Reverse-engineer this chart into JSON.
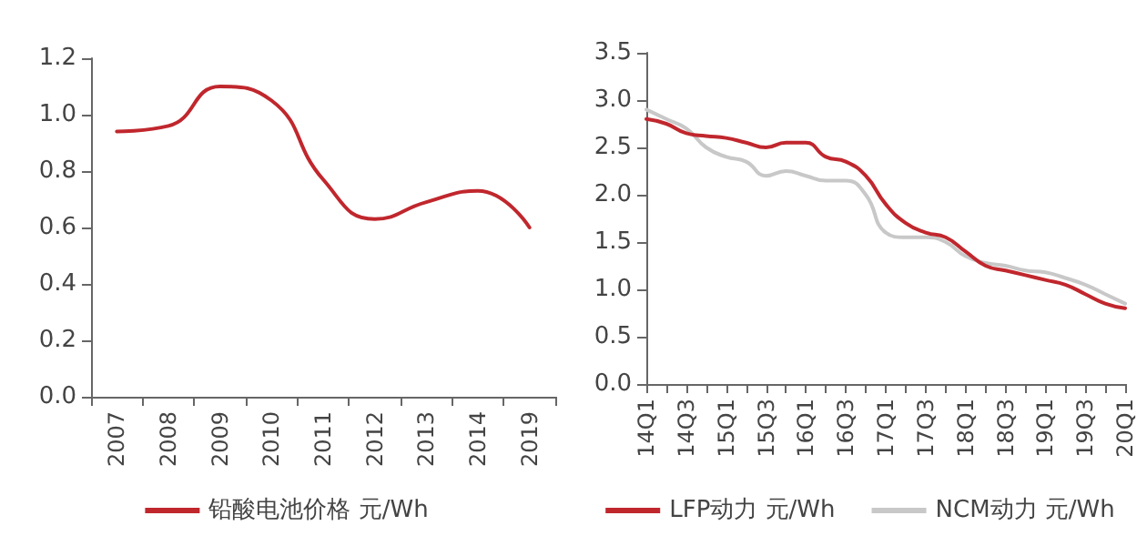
{
  "chart_data": [
    {
      "type": "line",
      "categories": [
        "2007",
        "2008",
        "2009",
        "2010",
        "2011",
        "2012",
        "2013",
        "2014",
        "2019"
      ],
      "series": [
        {
          "name": "铅酸电池价格 元/Wh",
          "color": "#c0272d",
          "values": [
            0.94,
            0.96,
            1.1,
            1.05,
            0.77,
            0.63,
            0.69,
            0.73,
            0.6
          ]
        }
      ],
      "ylim": [
        0,
        1.2
      ],
      "yticks": [
        {
          "value": 0,
          "label": "0.0"
        },
        {
          "value": 0.2,
          "label": "0.2"
        },
        {
          "value": 0.4,
          "label": "0.4"
        },
        {
          "value": 0.6,
          "label": "0.6"
        },
        {
          "value": 0.8,
          "label": "0.8"
        },
        {
          "value": 1,
          "label": "1.0"
        },
        {
          "value": 1.2,
          "label": "1.2"
        }
      ],
      "grid": false,
      "legend": "bottom",
      "marker": "none",
      "line_style": "solid"
    },
    {
      "type": "line",
      "categories": [
        "14Q1",
        null,
        "14Q3",
        null,
        "15Q1",
        null,
        "15Q3",
        null,
        "16Q1",
        null,
        "16Q3",
        null,
        "17Q1",
        null,
        "17Q3",
        null,
        "18Q1",
        null,
        "18Q3",
        null,
        "19Q1",
        null,
        "19Q3",
        null,
        "20Q1"
      ],
      "series": [
        {
          "name": "LFP动力 元/Wh",
          "color": "#c0272d",
          "values": [
            2.8,
            2.75,
            2.65,
            2.62,
            2.6,
            2.55,
            2.5,
            2.55,
            2.55,
            2.4,
            2.35,
            2.2,
            1.9,
            1.7,
            1.6,
            1.55,
            1.4,
            1.25,
            1.2,
            1.15,
            1.1,
            1.05,
            0.95,
            0.85,
            0.8
          ]
        },
        {
          "name": "NCM动力 元/Wh",
          "color": "#c8c8c8",
          "values": [
            2.9,
            2.8,
            2.7,
            2.5,
            2.4,
            2.35,
            2.2,
            2.25,
            2.2,
            2.15,
            2.15,
            2.0,
            1.6,
            1.55,
            1.55,
            1.5,
            1.35,
            1.28,
            1.25,
            1.2,
            1.18,
            1.12,
            1.05,
            0.95,
            0.85
          ]
        }
      ],
      "ylim": [
        0,
        3.5
      ],
      "yticks": [
        {
          "value": 0,
          "label": "0.0"
        },
        {
          "value": 0.5,
          "label": "0.5"
        },
        {
          "value": 1,
          "label": "1.0"
        },
        {
          "value": 1.5,
          "label": "1.5"
        },
        {
          "value": 2,
          "label": "2.0"
        },
        {
          "value": 2.5,
          "label": "2.5"
        },
        {
          "value": 3,
          "label": "3.0"
        },
        {
          "value": 3.5,
          "label": "3.5"
        }
      ],
      "grid": false,
      "legend": "bottom",
      "marker": "none",
      "line_style": "solid"
    }
  ]
}
